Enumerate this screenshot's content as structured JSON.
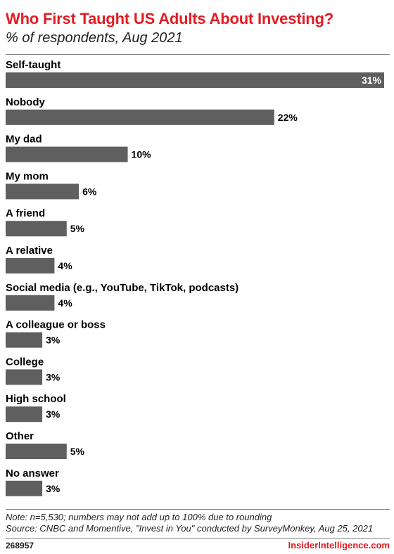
{
  "header": {
    "title": "Who First Taught US Adults About Investing?",
    "subtitle": "% of respondents, Aug 2021"
  },
  "footer": {
    "note": "Note: n=5,530; numbers may not add up to 100% due to rounding",
    "source": "Source: CNBC and Momentive, \"Invest in You\" conducted by SurveyMonkey, Aug 25, 2021",
    "chart_id": "268957",
    "brand": "InsiderIntelligence.com"
  },
  "colors": {
    "accent": "#e41b23",
    "bar": "#5f5f5f",
    "text": "#000000"
  },
  "chart_data": {
    "type": "bar",
    "orientation": "horizontal",
    "title": "Who First Taught US Adults About Investing?",
    "subtitle": "% of respondents, Aug 2021",
    "categories": [
      "Self-taught",
      "Nobody",
      "My dad",
      "My mom",
      "A friend",
      "A relative",
      "Social media (e.g., YouTube, TikTok, podcasts)",
      "A colleague or boss",
      "College",
      "High school",
      "Other",
      "No answer"
    ],
    "values": [
      31,
      22,
      10,
      6,
      5,
      4,
      4,
      3,
      3,
      3,
      5,
      3
    ],
    "value_labels": [
      "31%",
      "22%",
      "10%",
      "6%",
      "5%",
      "4%",
      "4%",
      "3%",
      "3%",
      "3%",
      "5%",
      "3%"
    ],
    "xlim": [
      0,
      31
    ],
    "grid": false,
    "legend": "none"
  }
}
